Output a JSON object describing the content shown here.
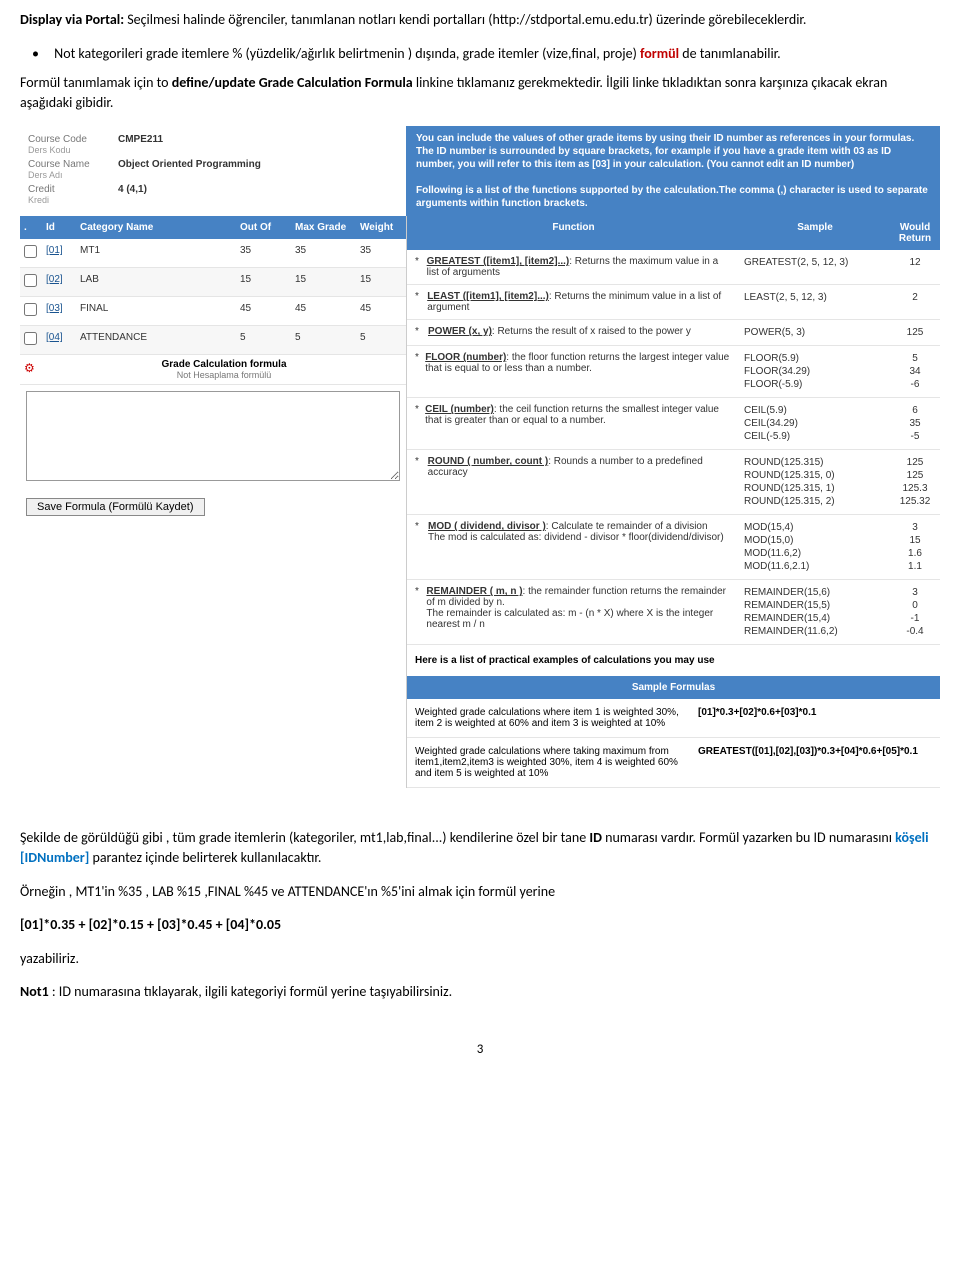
{
  "intro": {
    "p1a": "Display via Portal:",
    "p1b": " Seçilmesi halinde öğrenciler, tanımlanan notları kendi portalları (http://stdportal.emu.edu.tr) üzerinde görebileceklerdir.",
    "bullet_a": "Not kategorileri grade itemlere % (yüzdelik/ağırlık belirtmenin ) dışında, grade itemler (vize,final, proje) ",
    "bullet_formul": "formül",
    "bullet_b": " de tanımlanabilir.",
    "p2a": "Formül tanımlamak için to ",
    "p2bold": "define/update Grade Calculation Formula",
    "p2b": " linkine tıklamanız gerekmektedir. İlgili linke tıkladıktan sonra karşınıza çıkacak ekran aşağıdaki gibidir."
  },
  "course": {
    "code_lbl": "Course Code",
    "code_sub": "Ders Kodu",
    "code": "CMPE211",
    "name_lbl": "Course Name",
    "name_sub": "Ders Adı",
    "name": "Object Oriented Programming",
    "credit_lbl": "Credit",
    "credit_sub": "Kredi",
    "credit": "4 (4,1)"
  },
  "instr": {
    "p1": "You can include the values of other grade items by using their ID number as references in your formulas. The ID number is surrounded by square brackets, for example if you have a grade item with 03 as ID number, you will refer to this item as [03] in your calculation. (You cannot edit an ID number)",
    "p2": "Following is a list of the functions supported by the calculation.The comma (,) character is used to separate arguments within function brackets."
  },
  "left_hdr": {
    "dot": ".",
    "id": "Id",
    "cat": "Category Name",
    "out": "Out Of",
    "max": "Max Grade",
    "wt": "Weight"
  },
  "items": [
    {
      "id": "[01]",
      "cat": "MT1",
      "out": "35",
      "max": "35",
      "wt": "35"
    },
    {
      "id": "[02]",
      "cat": "LAB",
      "out": "15",
      "max": "15",
      "wt": "15"
    },
    {
      "id": "[03]",
      "cat": "FINAL",
      "out": "45",
      "max": "45",
      "wt": "45"
    },
    {
      "id": "[04]",
      "cat": "ATTENDANCE",
      "out": "5",
      "max": "5",
      "wt": "5"
    }
  ],
  "formula": {
    "title": "Grade Calculation formula",
    "sub": "Not Hesaplama formülü"
  },
  "save_btn": "Save Formula (Formülü Kaydet)",
  "right_hdr": {
    "fn": "Function",
    "sample": "Sample",
    "ret": "Would Return"
  },
  "funcs": [
    {
      "name": "GREATEST ([item1], [item2]...)",
      "desc": ": Returns the maximum value in a list of arguments",
      "sample": "GREATEST(2, 5, 12, 3)",
      "ret": "12"
    },
    {
      "name": "LEAST ([item1], [item2]...)",
      "desc": ": Returns the minimum value in a list of argument",
      "sample": "LEAST(2, 5, 12, 3)",
      "ret": "2"
    },
    {
      "name": "POWER (x, y)",
      "desc": ": Returns the result of x raised to the power y",
      "sample": "POWER(5, 3)",
      "ret": "125"
    },
    {
      "name": "FLOOR (number)",
      "desc": ": the floor function returns the largest integer value that is equal to or less than a number.",
      "sample": "FLOOR(5.9)\nFLOOR(34.29)\nFLOOR(-5.9)",
      "ret": "5\n34\n-6"
    },
    {
      "name": "CEIL (number)",
      "desc": ": the ceil function returns the smallest integer value that is greater than or equal to a number.",
      "sample": "CEIL(5.9)\nCEIL(34.29)\nCEIL(-5.9)",
      "ret": "6\n35\n-5"
    },
    {
      "name": "ROUND ( number, count )",
      "desc": ": Rounds a number to a predefined accuracy",
      "sample": "ROUND(125.315)\nROUND(125.315, 0)\nROUND(125.315, 1)\nROUND(125.315, 2)",
      "ret": "125\n125\n125.3\n125.32"
    },
    {
      "name": "MOD ( dividend, divisor )",
      "desc": ": Calculate te remainder of a division\nThe mod is calculated as: dividend - divisor * floor(dividend/divisor)",
      "sample": "MOD(15,4)\nMOD(15,0)\nMOD(11.6,2)\nMOD(11.6,2.1)",
      "ret": "3\n15\n1.6\n1.1"
    },
    {
      "name": "REMAINDER ( m, n )",
      "desc": ": the remainder function returns the remainder of m divided by n.\nThe remainder is calculated as: m - (n * X) where X is the integer nearest m / n",
      "sample": "REMAINDER(15,6)\nREMAINDER(15,5)\nREMAINDER(15,4)\nREMAINDER(11.6,2)",
      "ret": "3\n0\n-1\n-0.4"
    }
  ],
  "practical_hdr": "Here is a list of practical examples of calculations you may use",
  "samp_hdr": "Sample Formulas",
  "samples": [
    {
      "desc": "Weighted grade calculations where item 1 is weighted 30%, item 2 is weighted at 60% and item 3 is weighted at 10%",
      "formula": "[01]*0.3+[02]*0.6+[03]*0.1"
    },
    {
      "desc": "Weighted grade calculations where taking maximum from item1,item2,item3 is weighted 30%, item 4 is weighted 60% and item 5 is weighted at 10%",
      "formula": "GREATEST([01],[02],[03])*0.3+[04]*0.6+[05]*0.1"
    }
  ],
  "outro": {
    "p1a": "Şekilde de görüldüğü gibi , tüm grade itemlerin (kategoriler, mt1,lab,final...) kendilerine özel bir tane ",
    "p1id": "ID",
    "p1b": " numarası vardır. Formül yazarken bu ID numarasını ",
    "p1brk": "köşeli [IDNumber]",
    "p1c": " parantez içinde belirterek kullanılacaktır.",
    "p2": "Örneğin , MT1'in %35 , LAB %15 ,FINAL %45 ve ATTENDANCE'ın %5'ini almak için formül yerine",
    "p3": "[01]*0.35 + [02]*0.15 + [03]*0.45 + [04]*0.05",
    "p4": "yazabiliriz.",
    "p5a": "Not1",
    "p5b": ": ID numarasına tıklayarak, ilgili kategoriyi formül yerine taşıyabilirsiniz."
  },
  "page": "3"
}
